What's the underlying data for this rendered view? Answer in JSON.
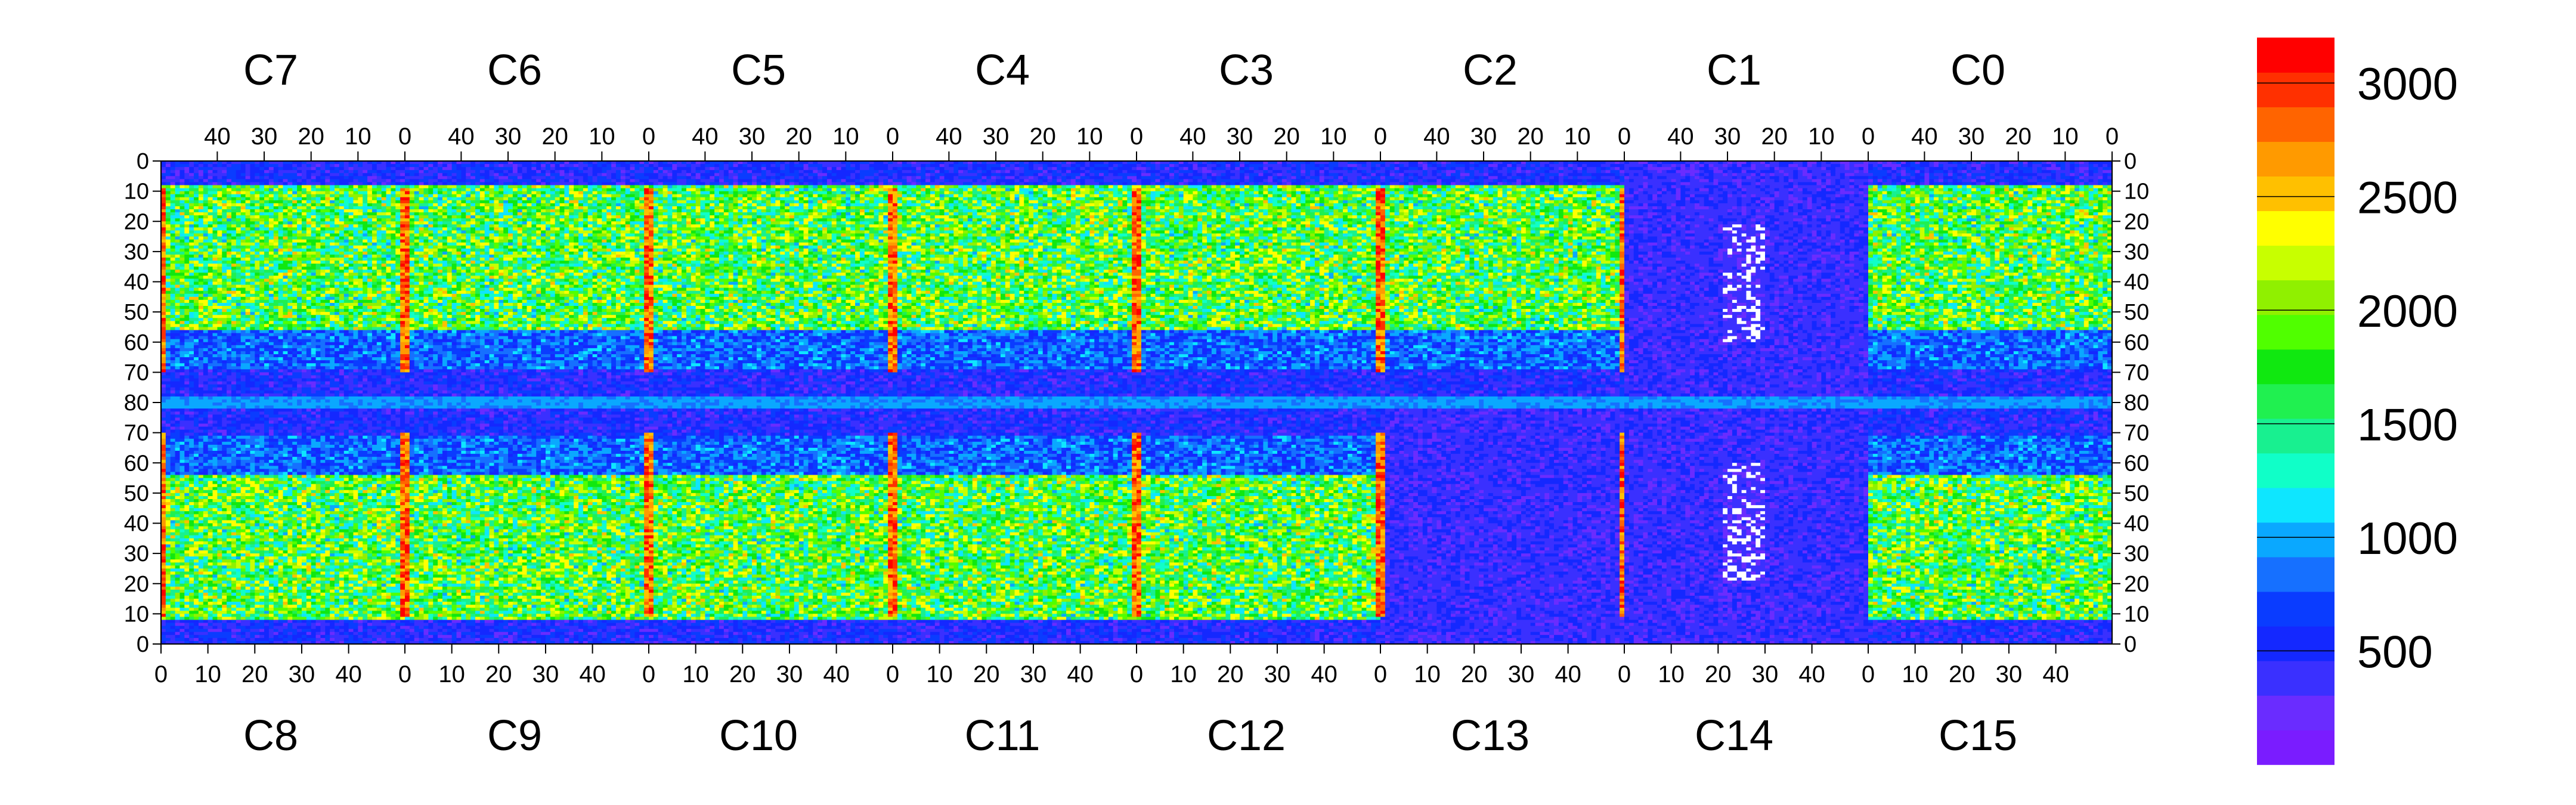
{
  "chart_data": {
    "type": "heatmap",
    "title": "",
    "xlabel": "",
    "ylabel": "",
    "chip_labels_top": [
      "C7",
      "C6",
      "C5",
      "C4",
      "C3",
      "C2",
      "C1",
      "C0"
    ],
    "chip_labels_bottom": [
      "C8",
      "C9",
      "C10",
      "C11",
      "C12",
      "C13",
      "C14",
      "C15"
    ],
    "x_ticks_top": [
      "40",
      "30",
      "20",
      "10",
      "0"
    ],
    "x_ticks_bottom": [
      "0",
      "10",
      "20",
      "30",
      "40"
    ],
    "y_ticks_top_half": [
      "0",
      "10",
      "20",
      "30",
      "40",
      "50",
      "60",
      "70",
      "80"
    ],
    "y_ticks_bottom_half": [
      "70",
      "60",
      "50",
      "40",
      "30",
      "20",
      "10",
      "0"
    ],
    "x_range_per_chip": [
      0,
      52
    ],
    "y_range_per_half": [
      0,
      80
    ],
    "colorbar": {
      "range": [
        0,
        3200
      ],
      "tick_labels": [
        "500",
        "1000",
        "1500",
        "2000",
        "2500",
        "3000"
      ],
      "tick_values": [
        500,
        1000,
        1500,
        2000,
        2500,
        3000
      ],
      "colors": [
        "#7a1cff",
        "#6a2cff",
        "#3a30ff",
        "#1428ff",
        "#0a3cff",
        "#1670ff",
        "#0aa8ff",
        "#0ee6ff",
        "#10ffc8",
        "#18f090",
        "#20f050",
        "#10e810",
        "#50ff00",
        "#90f000",
        "#c8ff00",
        "#ffff00",
        "#ffc000",
        "#ff9a00",
        "#ff6400",
        "#ff3000",
        "#ff0000"
      ]
    },
    "regions": {
      "background_level": 250,
      "high_occupancy_level": 1900,
      "hot_column_level": 3050,
      "dead_region_chips": [
        "C13",
        "C14"
      ],
      "central_band_level": 850
    }
  }
}
